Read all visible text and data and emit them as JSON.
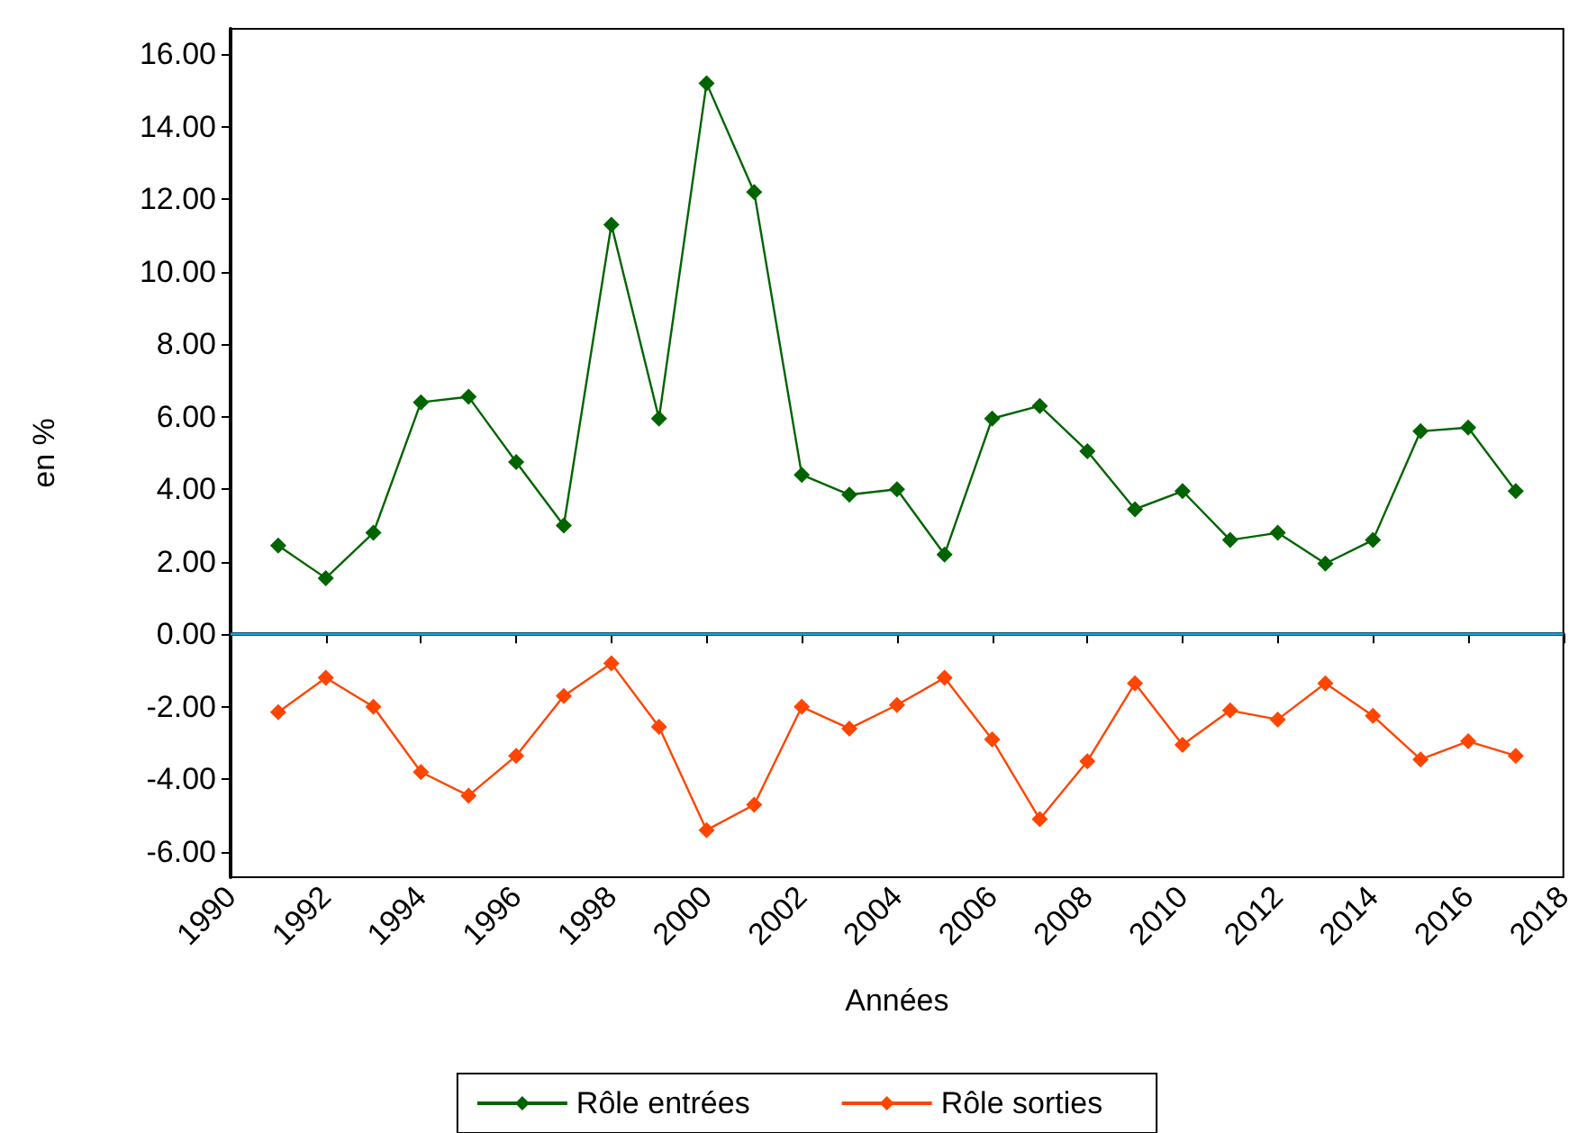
{
  "chart_data": {
    "type": "line",
    "xlabel": "Années",
    "ylabel": "en %",
    "x": [
      1991,
      1992,
      1993,
      1994,
      1995,
      1996,
      1997,
      1998,
      1999,
      2000,
      2001,
      2002,
      2003,
      2004,
      2005,
      2006,
      2007,
      2008,
      2009,
      2010,
      2011,
      2012,
      2013,
      2014,
      2015,
      2016,
      2017
    ],
    "series": [
      {
        "name": "Rôle entrées",
        "color": "#006400",
        "values": [
          2.45,
          1.55,
          2.8,
          6.4,
          6.55,
          4.75,
          3.0,
          11.3,
          5.95,
          15.2,
          12.2,
          4.4,
          3.85,
          4.0,
          2.2,
          5.95,
          6.3,
          5.05,
          3.45,
          3.95,
          2.6,
          2.8,
          1.95,
          2.6,
          5.6,
          5.7,
          3.95
        ]
      },
      {
        "name": "Rôle sorties",
        "color": "#ff4500",
        "values": [
          -2.15,
          -1.2,
          -2.0,
          -3.8,
          -4.45,
          -3.35,
          -1.7,
          -0.8,
          -2.55,
          -5.4,
          -4.7,
          -2.0,
          -2.6,
          -1.95,
          -1.2,
          -2.9,
          -5.1,
          -3.5,
          -1.35,
          -3.05,
          -2.1,
          -2.35,
          -1.35,
          -2.25,
          -3.45,
          -2.95,
          -3.35
        ]
      }
    ],
    "xlim": [
      1990,
      2018
    ],
    "xticks": [
      1990,
      1992,
      1994,
      1996,
      1998,
      2000,
      2002,
      2004,
      2006,
      2008,
      2010,
      2012,
      2014,
      2016,
      2018
    ],
    "ylim": [
      -6.7,
      16.7
    ],
    "yticks": [
      {
        "value": -6,
        "label": "-6.00"
      },
      {
        "value": -4,
        "label": "-4.00"
      },
      {
        "value": -2,
        "label": "-2.00"
      },
      {
        "value": 0,
        "label": "0.00"
      },
      {
        "value": 2,
        "label": "2.00"
      },
      {
        "value": 4,
        "label": "4.00"
      },
      {
        "value": 6,
        "label": "6.00"
      },
      {
        "value": 8,
        "label": "8.00"
      },
      {
        "value": 10,
        "label": "10.00"
      },
      {
        "value": 12,
        "label": "12.00"
      },
      {
        "value": 14,
        "label": "14.00"
      },
      {
        "value": 16,
        "label": "16.00"
      }
    ],
    "ref_lines": [
      {
        "axis": "y",
        "value": 0,
        "color": "#1ba1d6"
      }
    ],
    "marker": "diamond",
    "legend": "bottom",
    "grid": false
  }
}
